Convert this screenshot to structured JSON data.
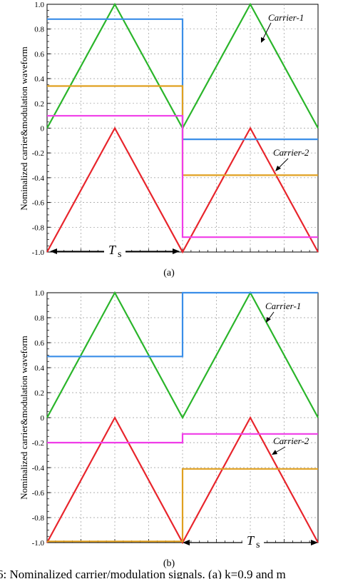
{
  "chart_data": [
    {
      "type": "line",
      "panel_label": "(a)",
      "ylabel": "Nominalized  carrier&modulation waveform",
      "xlim": [
        0,
        2
      ],
      "ylim": [
        -1.0,
        1.0
      ],
      "yticks": [
        "1.0",
        "0.8",
        "0.6",
        "0.4",
        "0.2",
        "0",
        "-0.2",
        "-0.4",
        "-0.6",
        "-0.8",
        "-1.0"
      ],
      "grid": true,
      "period_label": "T",
      "period_subscript": "s",
      "annotations": [
        "Carrier-1",
        "Carrier-2"
      ],
      "series": [
        {
          "color": "#2ab52a",
          "x": [
            0,
            0.5,
            1,
            1.5,
            2
          ],
          "y": [
            0,
            1,
            0,
            1,
            0
          ]
        },
        {
          "color": "#e8252c",
          "x": [
            0,
            0.5,
            1,
            1.5,
            2
          ],
          "y": [
            -1,
            0,
            -1,
            0,
            -1
          ]
        },
        {
          "color": "#3a8ee8",
          "step": true,
          "x": [
            0,
            1,
            1,
            2
          ],
          "y": [
            0.88,
            0.88,
            -0.09,
            -0.09
          ]
        },
        {
          "color": "#e0a020",
          "step": true,
          "x": [
            0,
            1,
            1,
            2
          ],
          "y": [
            0.34,
            0.34,
            -0.38,
            -0.38
          ]
        },
        {
          "color": "#f03ce8",
          "step": true,
          "x": [
            0,
            1,
            1,
            2
          ],
          "y": [
            0.1,
            0.1,
            -0.88,
            -0.88
          ]
        }
      ]
    },
    {
      "type": "line",
      "panel_label": "(b)",
      "ylabel": "Nominalized  carrier&modulation waveform",
      "xlim": [
        0,
        2
      ],
      "ylim": [
        -1.0,
        1.0
      ],
      "yticks": [
        "1.0",
        "0.8",
        "0.6",
        "0.4",
        "0.2",
        "0",
        "-0.2",
        "-0.4",
        "-0.6",
        "-0.8",
        "-1.0"
      ],
      "grid": true,
      "period_label": "T",
      "period_subscript": "s",
      "annotations": [
        "Carrier-1",
        "Carrier-2"
      ],
      "series": [
        {
          "color": "#2ab52a",
          "x": [
            0,
            0.5,
            1,
            1.5,
            2
          ],
          "y": [
            0,
            1,
            0,
            1,
            0
          ]
        },
        {
          "color": "#e8252c",
          "x": [
            0,
            0.5,
            1,
            1.5,
            2
          ],
          "y": [
            -1,
            0,
            -1,
            0,
            -1
          ]
        },
        {
          "color": "#3a8ee8",
          "step": true,
          "x": [
            0,
            1,
            1,
            2
          ],
          "y": [
            0.49,
            0.49,
            1.0,
            1.0
          ]
        },
        {
          "color": "#e0a020",
          "step": true,
          "x": [
            0,
            1,
            1,
            2
          ],
          "y": [
            -0.99,
            -0.99,
            -0.41,
            -0.41
          ]
        },
        {
          "color": "#f03ce8",
          "step": true,
          "x": [
            0,
            1,
            1,
            2
          ],
          "y": [
            -0.2,
            -0.2,
            -0.13,
            -0.13
          ]
        }
      ]
    }
  ],
  "caption": "6: Nominalized carrier/modulation signals. (a) k=0.9 and m"
}
